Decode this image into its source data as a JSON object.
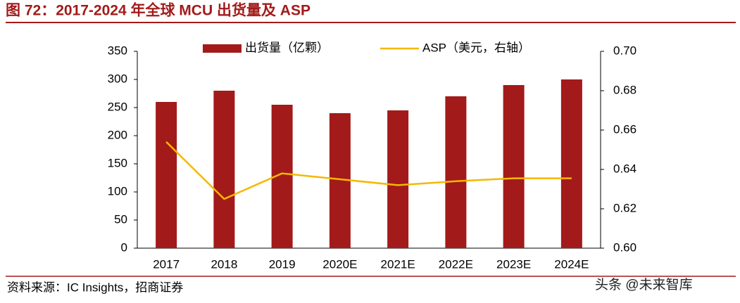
{
  "chart_data": {
    "type": "bar",
    "title": "图 72：2017-2024 年全球 MCU 出货量及 ASP",
    "source": "资料来源：IC Insights，招商证券",
    "watermark": "头条 @未来智库",
    "categories": [
      "2017",
      "2018",
      "2019",
      "2020E",
      "2021E",
      "2022E",
      "2023E",
      "2024E"
    ],
    "series": [
      {
        "name": "出货量（亿颗）",
        "type": "bar",
        "color": "#a31a1a",
        "values": [
          260,
          280,
          255,
          240,
          245,
          270,
          290,
          300
        ]
      },
      {
        "name": "ASP（美元，右轴）",
        "type": "line",
        "axis": "y2",
        "color": "#f5b800",
        "values": [
          0.654,
          0.625,
          0.638,
          0.635,
          0.632,
          0.634,
          0.6355,
          0.6355
        ]
      }
    ],
    "ylim": [
      0,
      350
    ],
    "yticks": [
      0,
      50,
      100,
      150,
      200,
      250,
      300,
      350
    ],
    "y2lim": [
      0.6,
      0.7
    ],
    "y2ticks": [
      {
        "value": 0.6,
        "label": "0.60"
      },
      0.62,
      0.64,
      0.66,
      0.68,
      {
        "value": 0.7,
        "label": "0.70"
      }
    ],
    "legend": "top"
  }
}
